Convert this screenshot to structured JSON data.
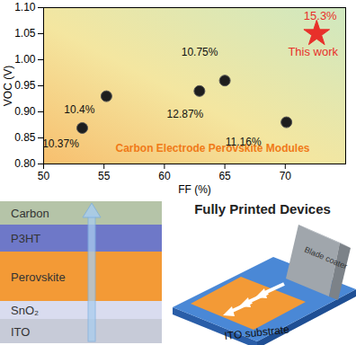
{
  "chart_data": {
    "type": "scatter",
    "xlabel": "FF (%)",
    "ylabel": "VOC (V)",
    "xlim": [
      50,
      75
    ],
    "xticks": [
      50,
      55,
      60,
      65,
      70
    ],
    "ylim": [
      0.8,
      1.1
    ],
    "yticks": [
      {
        "value": 0.8,
        "label": "0.80"
      },
      0.85,
      {
        "value": 0.9,
        "label": "0.90"
      },
      0.95,
      {
        "value": 1.0,
        "label": "1.00"
      },
      1.05,
      {
        "value": 1.1,
        "label": "1.10"
      }
    ],
    "grid": false,
    "data_labels": true,
    "series": [
      {
        "name": "Carbon Electrode Perovskite Modules",
        "color": "#1e1e1e",
        "marker": "circle",
        "x": [
          53.2,
          55.2,
          62.9,
          65.0,
          70.1
        ],
        "values": [
          0.869,
          0.93,
          0.94,
          0.96,
          0.88
        ],
        "labels": [
          "10.37%",
          "10.4%",
          "12.87%",
          "10.75%",
          "11.16%"
        ]
      },
      {
        "name": "This work",
        "color": "#e8302a",
        "marker": "star",
        "x": [
          72.6
        ],
        "values": [
          1.05
        ],
        "labels": [
          "15.3%"
        ]
      }
    ]
  },
  "diagram": {
    "layers": [
      "Carbon",
      "P3HT",
      "Perovskite",
      "SnO₂",
      "ITO"
    ],
    "title": "Fully Printed Devices",
    "tool": "Blade coater",
    "substrate": "ITO substrate"
  }
}
